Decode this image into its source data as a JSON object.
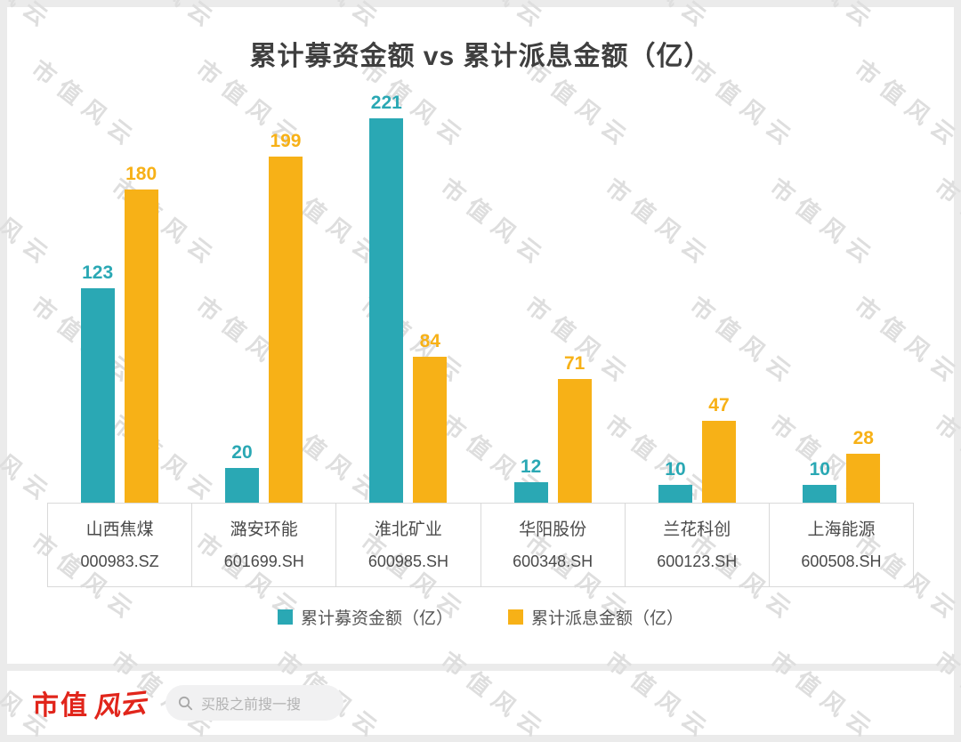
{
  "title": "累计募资金额 vs 累计派息金额（亿）",
  "watermark": "市值风云",
  "chart_data": {
    "type": "bar",
    "title": "累计募资金额 vs 累计派息金额（亿）",
    "categories": [
      "山西焦煤",
      "潞安环能",
      "淮北矿业",
      "华阳股份",
      "兰花科创",
      "上海能源"
    ],
    "codes": [
      "000983.SZ",
      "601699.SH",
      "600985.SH",
      "600348.SH",
      "600123.SH",
      "600508.SH"
    ],
    "series": [
      {
        "name": "累计募资金额（亿）",
        "color": "#2AA8B4",
        "values": [
          123,
          20,
          221,
          12,
          10,
          10
        ]
      },
      {
        "name": "累计派息金额（亿）",
        "color": "#F7B117",
        "values": [
          180,
          199,
          84,
          71,
          47,
          28
        ]
      }
    ],
    "ylim": [
      0,
      230
    ],
    "legend_position": "bottom",
    "grid": false
  },
  "footer": {
    "brand_text": "市值",
    "brand_script": "风云",
    "search_placeholder": "买股之前搜一搜"
  }
}
